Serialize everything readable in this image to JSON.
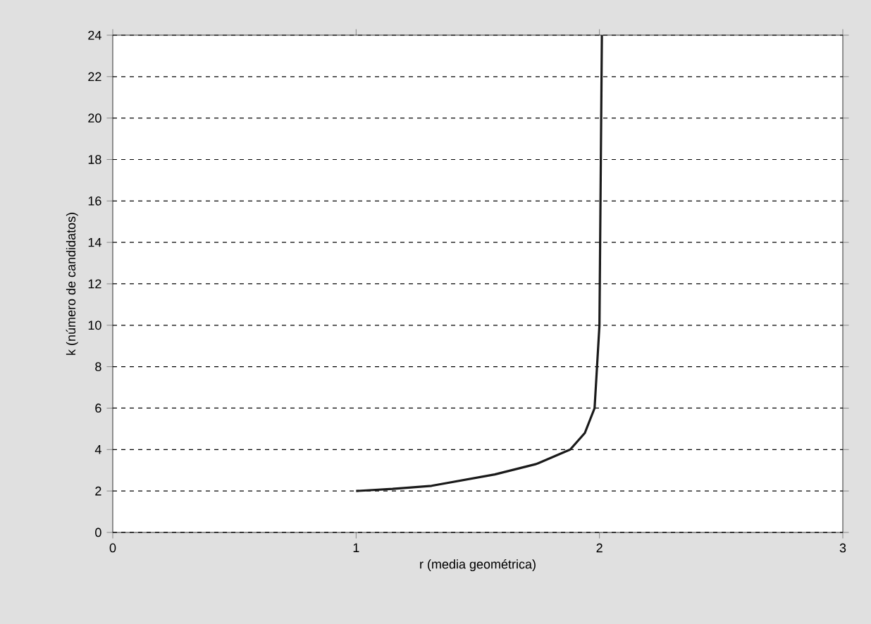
{
  "chart_data": {
    "type": "line",
    "xlabel": "r (media geométrica)",
    "ylabel": "k (número de candidatos)",
    "x": [
      1.0,
      1.15,
      1.31,
      1.57,
      1.74,
      1.88,
      1.94,
      1.98,
      1.99,
      2.0,
      2.01
    ],
    "values": [
      2,
      2.1,
      2.25,
      2.8,
      3.3,
      4,
      4.8,
      6,
      8,
      10,
      24
    ],
    "color": "#1a1a1a",
    "xlim": [
      0,
      3
    ],
    "ylim": [
      0,
      24
    ],
    "xticks": [
      0,
      1,
      2,
      3
    ],
    "yticks": [
      0,
      2,
      4,
      6,
      8,
      10,
      12,
      14,
      16,
      18,
      20,
      22,
      24
    ],
    "grid": "y",
    "line_style": "solid",
    "marker": "none"
  }
}
